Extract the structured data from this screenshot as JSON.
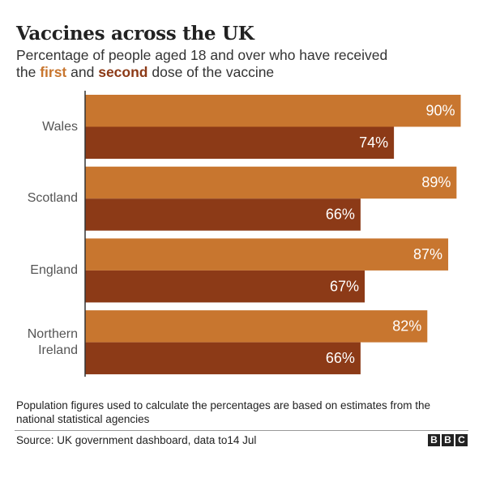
{
  "chart_data": {
    "type": "bar",
    "orientation": "horizontal",
    "title": "Vaccines across the UK",
    "subtitle": [
      "Percentage of people aged 18 and over who have received",
      "the",
      "and",
      "dose of the vaccine"
    ],
    "categories": [
      "Wales",
      "Scotland",
      "England",
      "Northern Ireland"
    ],
    "series": [
      {
        "name": "first",
        "color": "#c8762f",
        "values": [
          90,
          89,
          87,
          82
        ],
        "value_labels": [
          "90%",
          "89%",
          "87%",
          "82%"
        ]
      },
      {
        "name": "second",
        "color": "#8c3a17",
        "values": [
          74,
          66,
          67,
          66
        ],
        "value_labels": [
          "74%",
          "66%",
          "67%",
          "66%"
        ]
      }
    ],
    "xlim": [
      0,
      100
    ],
    "note": "Population figures used to calculate the percentages are based on estimates from the national statistical agencies",
    "source": "Source: UK government dashboard, data to14 Jul",
    "logo": [
      "B",
      "B",
      "C"
    ]
  }
}
